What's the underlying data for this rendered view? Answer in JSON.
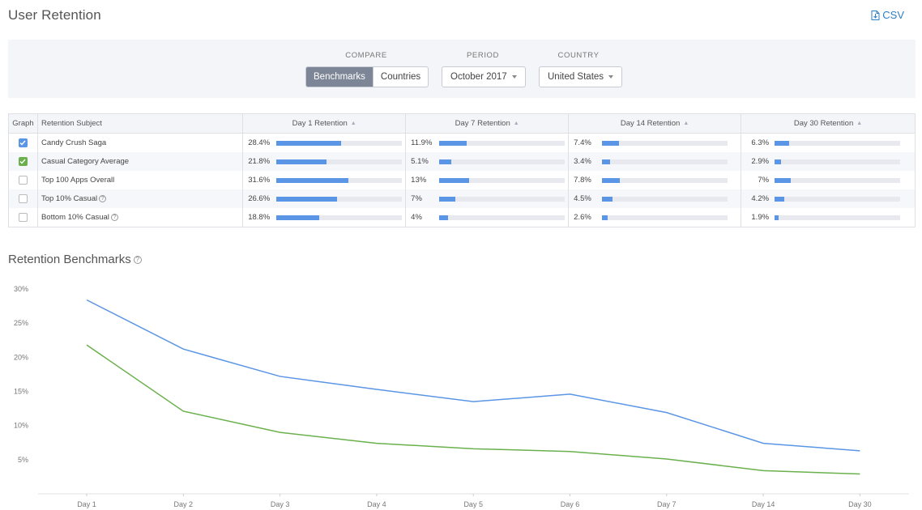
{
  "header": {
    "title": "User Retention",
    "csv_label": "CSV"
  },
  "filters": {
    "compare_label": "COMPARE",
    "compare_options": [
      "Benchmarks",
      "Countries"
    ],
    "compare_selected": "Benchmarks",
    "period_label": "PERIOD",
    "period_value": "October 2017",
    "country_label": "COUNTRY",
    "country_value": "United States"
  },
  "table": {
    "columns": [
      "Graph",
      "Retention Subject",
      "Day 1 Retention",
      "Day 7 Retention",
      "Day 14 Retention",
      "Day 30 Retention"
    ],
    "rows": [
      {
        "subject": "Candy Crush Saga",
        "checked": true,
        "check_color": "#5b95e5",
        "help": false,
        "values": [
          "28.4%",
          "11.9%",
          "7.4%",
          "6.3%"
        ],
        "numeric": [
          28.4,
          11.9,
          7.4,
          6.3
        ]
      },
      {
        "subject": "Casual Category Average",
        "checked": true,
        "check_color": "#6ab04c",
        "help": false,
        "values": [
          "21.8%",
          "5.1%",
          "3.4%",
          "2.9%"
        ],
        "numeric": [
          21.8,
          5.1,
          3.4,
          2.9
        ]
      },
      {
        "subject": "Top 100 Apps Overall",
        "checked": false,
        "check_color": "",
        "help": false,
        "values": [
          "31.6%",
          "13%",
          "7.8%",
          "7%"
        ],
        "numeric": [
          31.6,
          13,
          7.8,
          7
        ]
      },
      {
        "subject": "Top 10% Casual",
        "checked": false,
        "check_color": "",
        "help": true,
        "values": [
          "26.6%",
          "7%",
          "4.5%",
          "4.2%"
        ],
        "numeric": [
          26.6,
          7,
          4.5,
          4.2
        ]
      },
      {
        "subject": "Bottom 10% Casual",
        "checked": false,
        "check_color": "",
        "help": true,
        "values": [
          "18.8%",
          "4%",
          "2.6%",
          "1.9%"
        ],
        "numeric": [
          18.8,
          4,
          2.6,
          1.9
        ]
      }
    ]
  },
  "section": {
    "title": "Retention Benchmarks"
  },
  "colors": {
    "accent": "#2f7fc6",
    "series_blue": "#5b95e5",
    "series_green": "#6ab04c",
    "panel": "#f3f5f9"
  },
  "chart_data": {
    "type": "line",
    "title": "Retention Benchmarks",
    "categories": [
      "Day 1",
      "Day 2",
      "Day 3",
      "Day 4",
      "Day 5",
      "Day 6",
      "Day 7",
      "Day 14",
      "Day 30"
    ],
    "y_ticks": [
      "30%",
      "25%",
      "20%",
      "15%",
      "10%",
      "5%"
    ],
    "ylim": [
      0,
      30
    ],
    "grid": false,
    "series": [
      {
        "name": "Candy Crush Saga",
        "color": "#5b95e5",
        "values": [
          28.4,
          21.2,
          17.2,
          15.3,
          13.5,
          14.6,
          11.9,
          7.4,
          6.3
        ]
      },
      {
        "name": "Casual Category Average",
        "color": "#6ab04c",
        "values": [
          21.8,
          12.1,
          9.0,
          7.4,
          6.6,
          6.2,
          5.1,
          3.4,
          2.9
        ]
      }
    ]
  }
}
